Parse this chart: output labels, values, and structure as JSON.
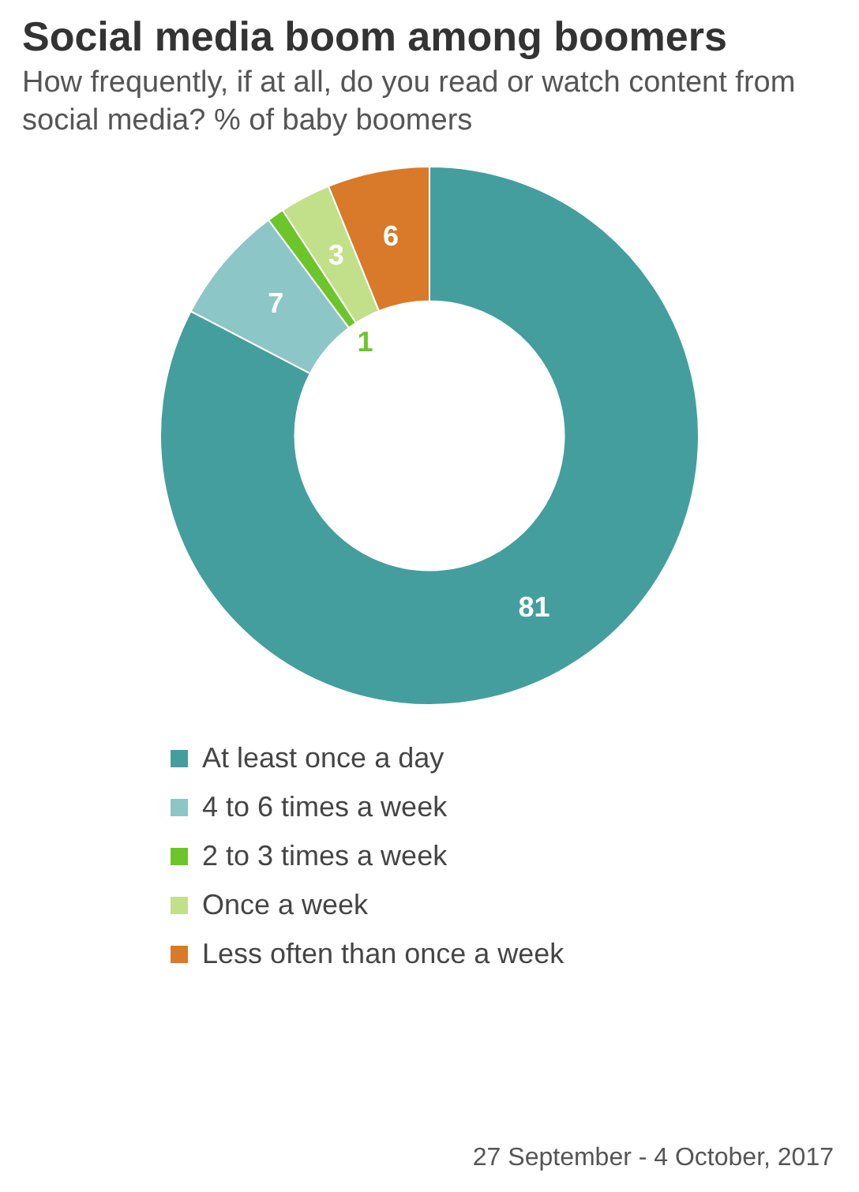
{
  "chart_data": {
    "type": "donut",
    "title": "Social media boom among boomers",
    "subtitle": "How frequently, if at all, do you read or watch content from social media? % of baby boomers",
    "categories": [
      "At least once a day",
      "4 to 6 times a week",
      "2 to 3 times a week",
      "Once a week",
      "Less often than once a week"
    ],
    "values": [
      81,
      7,
      1,
      3,
      6
    ],
    "colors": [
      "#449e9e",
      "#8cc6c6",
      "#6cc62a",
      "#c2e08a",
      "#d97a2a"
    ],
    "data_labels": true,
    "legend": "bottom",
    "annotations": [
      "27 September - 4 October, 2017"
    ]
  }
}
